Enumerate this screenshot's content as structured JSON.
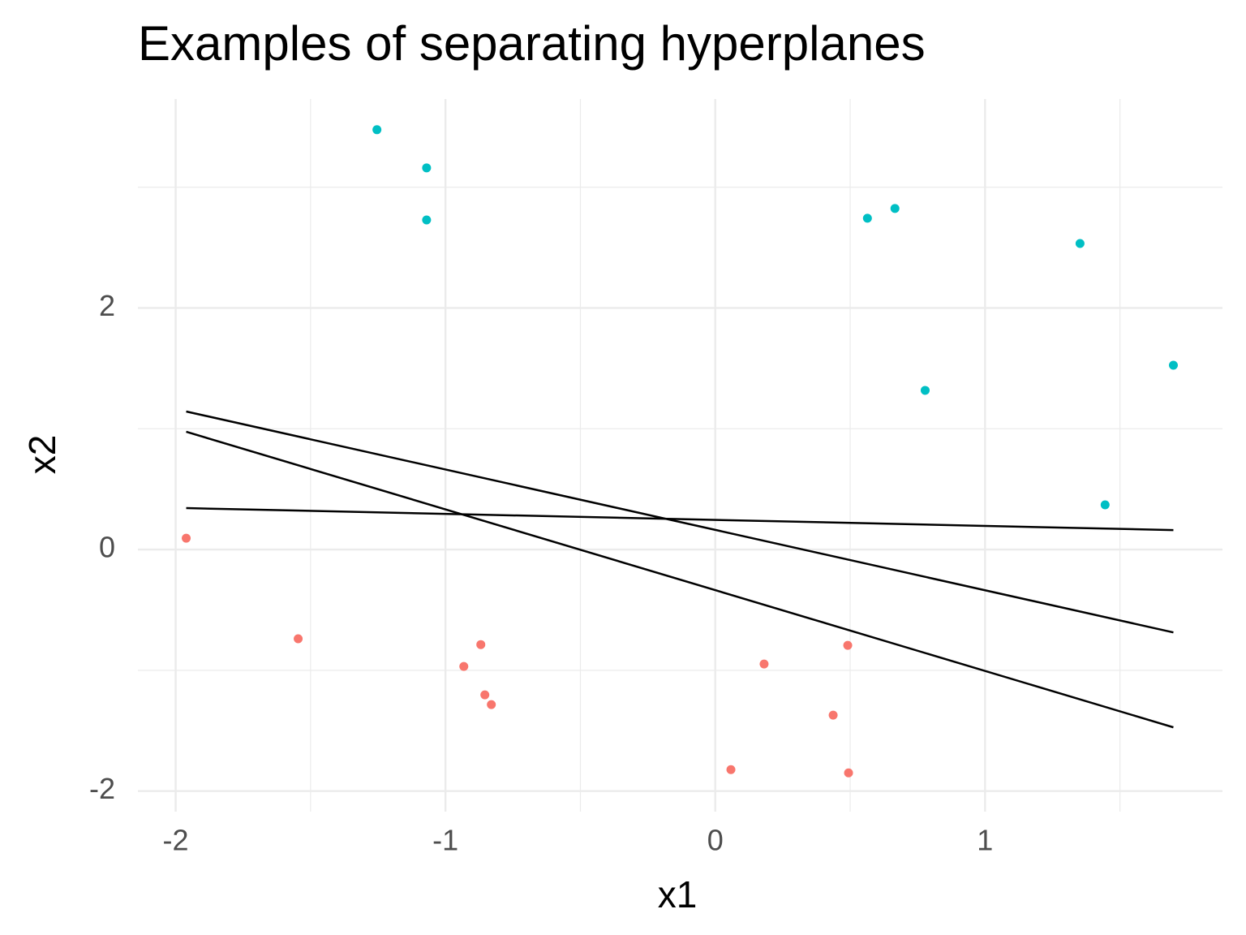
{
  "chart_data": {
    "type": "scatter",
    "title": "Examples of separating hyperplanes",
    "x_label": "x1",
    "y_label": "x2",
    "xlim": [
      -2.14,
      1.88
    ],
    "ylim": [
      -2.17,
      3.73
    ],
    "xticks": [
      -2,
      -1,
      0,
      1
    ],
    "yticks": [
      -2,
      0,
      2
    ],
    "x_minor_ticks": [
      -1.5,
      -0.5,
      0.5,
      1.5
    ],
    "y_minor_ticks": [
      -1,
      1,
      3
    ],
    "grid": true,
    "series": [
      {
        "color": "#00BFC4",
        "x": [
          -1.254,
          -1.07,
          -1.07,
          0.564,
          0.666,
          1.352,
          1.698,
          0.778,
          1.445
        ],
        "y": [
          3.476,
          3.16,
          2.729,
          2.743,
          2.824,
          2.534,
          1.526,
          1.318,
          0.37
        ]
      },
      {
        "color": "#F8766D",
        "x": [
          -1.961,
          -1.546,
          -0.869,
          -0.932,
          -0.854,
          -0.83,
          0.181,
          0.491,
          0.437,
          0.058,
          0.494
        ],
        "y": [
          0.094,
          -0.739,
          -0.787,
          -0.968,
          -1.203,
          -1.284,
          -0.948,
          -0.793,
          -1.371,
          -1.822,
          -1.849
        ]
      }
    ],
    "lines": [
      {
        "color": "#000000",
        "x": [
          -1.961,
          1.698
        ],
        "y": [
          1.143,
          -0.686
        ]
      },
      {
        "color": "#000000",
        "x": [
          -1.961,
          1.698
        ],
        "y": [
          0.975,
          -1.472
        ]
      },
      {
        "color": "#000000",
        "x": [
          -1.961,
          1.698
        ],
        "y": [
          0.343,
          0.161
        ]
      }
    ]
  }
}
